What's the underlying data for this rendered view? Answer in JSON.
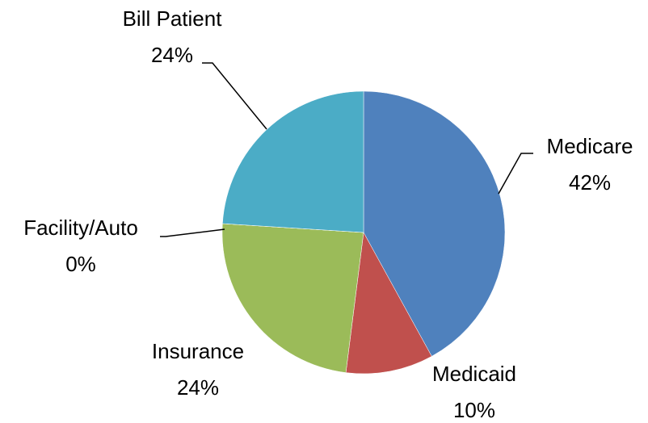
{
  "chart_data": {
    "type": "pie",
    "categories": [
      "Medicare",
      "Medicaid",
      "Insurance",
      "Facility/Auto",
      "Bill Patient"
    ],
    "values": [
      42,
      10,
      24,
      0,
      24
    ],
    "value_labels": [
      "42%",
      "10%",
      "24%",
      "0%",
      "24%"
    ],
    "colors": [
      "#4f81bd",
      "#c0504d",
      "#9bbb59",
      "#8064a2",
      "#4bacc6"
    ]
  }
}
